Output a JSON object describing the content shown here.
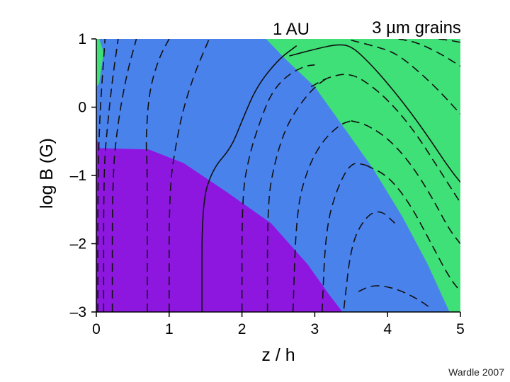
{
  "chart_data": {
    "type": "contour",
    "title_left": "1 AU",
    "title_right": "3 µm grains",
    "xlabel": "z / h",
    "ylabel": "log B (G)",
    "xlim": [
      0,
      5
    ],
    "ylim": [
      -3,
      1
    ],
    "xticks": [
      "0",
      "1",
      "2",
      "3",
      "4",
      "5"
    ],
    "yticks": [
      "1",
      "0",
      "–1",
      "–2",
      "–3"
    ],
    "colors": {
      "ohm": "#8e17e0",
      "hall": "#4a82ec",
      "ambipolar": "#3fe077",
      "contour": "#111111",
      "axis": "#000000"
    },
    "regions": {
      "ohm_boundary": [
        [
          0,
          -0.45
        ],
        [
          0.05,
          -0.6
        ],
        [
          0.72,
          -0.62
        ],
        [
          1.2,
          -0.82
        ],
        [
          1.8,
          -1.25
        ],
        [
          2.4,
          -1.7
        ],
        [
          2.9,
          -2.3
        ],
        [
          3.2,
          -2.75
        ],
        [
          3.38,
          -3.0
        ]
      ],
      "ambipolar_left_boundary": [
        [
          0.04,
          1
        ],
        [
          0.1,
          0.8
        ],
        [
          0.04,
          0.35
        ],
        [
          0,
          0.3
        ]
      ],
      "ambipolar_right_boundary": [
        [
          2.33,
          1
        ],
        [
          2.6,
          0.7
        ],
        [
          3.0,
          0.3
        ],
        [
          3.4,
          -0.3
        ],
        [
          3.8,
          -0.9
        ],
        [
          4.2,
          -1.6
        ],
        [
          4.55,
          -2.3
        ],
        [
          4.85,
          -3.0
        ]
      ]
    },
    "contours": [
      {
        "style": "dashed",
        "points": [
          [
            0.02,
            -3
          ],
          [
            0.02,
            -1.0
          ],
          [
            0.05,
            -0.1
          ],
          [
            0.08,
            0.4
          ],
          [
            0.12,
            1
          ]
        ]
      },
      {
        "style": "dashed",
        "points": [
          [
            0.1,
            -3
          ],
          [
            0.1,
            -0.9
          ],
          [
            0.16,
            -0.2
          ],
          [
            0.22,
            0.4
          ],
          [
            0.3,
            1
          ]
        ]
      },
      {
        "style": "dashed",
        "points": [
          [
            0.22,
            -3
          ],
          [
            0.22,
            -1.0
          ],
          [
            0.3,
            -0.2
          ],
          [
            0.42,
            0.5
          ],
          [
            0.55,
            1
          ]
        ]
      },
      {
        "style": "dashed",
        "points": [
          [
            0.7,
            -3
          ],
          [
            0.7,
            -0.8
          ],
          [
            0.68,
            -0.5
          ],
          [
            0.72,
            0.2
          ],
          [
            0.85,
            0.7
          ],
          [
            1.0,
            1
          ]
        ]
      },
      {
        "style": "dashed",
        "points": [
          [
            1.0,
            -3
          ],
          [
            1.0,
            -1.2
          ],
          [
            1.1,
            -0.5
          ],
          [
            1.2,
            0.0
          ],
          [
            1.35,
            0.5
          ],
          [
            1.55,
            1
          ]
        ]
      },
      {
        "style": "solid",
        "points": [
          [
            1.45,
            -3
          ],
          [
            1.45,
            -1.4
          ],
          [
            1.6,
            -0.9
          ],
          [
            1.85,
            -0.6
          ],
          [
            2.0,
            -0.2
          ],
          [
            2.2,
            0.3
          ],
          [
            2.5,
            0.7
          ],
          [
            2.75,
            0.9
          ]
        ]
      },
      {
        "style": "dashed",
        "points": [
          [
            2.0,
            -3
          ],
          [
            2.0,
            -1.3
          ],
          [
            2.1,
            -0.7
          ],
          [
            2.25,
            -0.2
          ],
          [
            2.4,
            0.2
          ],
          [
            2.6,
            0.45
          ],
          [
            2.85,
            0.6
          ],
          [
            3.0,
            0.62
          ]
        ]
      },
      {
        "style": "dashed",
        "points": [
          [
            2.35,
            -3
          ],
          [
            2.35,
            -1.4
          ],
          [
            2.45,
            -0.8
          ],
          [
            2.6,
            -0.3
          ],
          [
            2.8,
            0.05
          ],
          [
            3.0,
            0.3
          ],
          [
            3.2,
            0.45
          ]
        ]
      },
      {
        "style": "dashed",
        "points": [
          [
            2.7,
            -3
          ],
          [
            2.75,
            -1.5
          ],
          [
            2.9,
            -0.9
          ],
          [
            3.1,
            -0.5
          ],
          [
            3.35,
            -0.25
          ],
          [
            3.5,
            -0.2
          ]
        ]
      },
      {
        "style": "dashed",
        "points": [
          [
            3.1,
            -3
          ],
          [
            3.15,
            -1.8
          ],
          [
            3.3,
            -1.2
          ],
          [
            3.5,
            -0.8
          ],
          [
            3.7,
            -0.85
          ]
        ]
      },
      {
        "style": "dashed",
        "points": [
          [
            3.4,
            -2.95
          ],
          [
            3.5,
            -2.0
          ],
          [
            3.7,
            -1.6
          ],
          [
            3.9,
            -1.5
          ],
          [
            4.1,
            -1.7
          ]
        ]
      },
      {
        "style": "dashed",
        "points": [
          [
            3.6,
            -2.7
          ],
          [
            3.8,
            -2.6
          ],
          [
            4.1,
            -2.65
          ],
          [
            4.4,
            -2.8
          ],
          [
            4.6,
            -2.95
          ]
        ]
      },
      {
        "style": "solid",
        "points": [
          [
            2.65,
            0.75
          ],
          [
            3.0,
            0.85
          ],
          [
            3.3,
            0.92
          ],
          [
            3.5,
            0.9
          ],
          [
            3.75,
            0.65
          ],
          [
            4.0,
            0.35
          ],
          [
            4.3,
            -0.05
          ],
          [
            4.6,
            -0.5
          ],
          [
            4.85,
            -0.9
          ],
          [
            5.0,
            -1.1
          ]
        ]
      },
      {
        "style": "dashed",
        "points": [
          [
            2.95,
            0.3
          ],
          [
            3.2,
            0.45
          ],
          [
            3.5,
            0.5
          ],
          [
            3.8,
            0.3
          ],
          [
            4.1,
            0.0
          ],
          [
            4.4,
            -0.4
          ],
          [
            4.7,
            -0.9
          ],
          [
            5.0,
            -1.4
          ]
        ]
      },
      {
        "style": "dashed",
        "points": [
          [
            3.5,
            0.98
          ],
          [
            3.8,
            0.9
          ],
          [
            4.1,
            0.8
          ],
          [
            4.4,
            0.55
          ],
          [
            4.7,
            0.25
          ],
          [
            5.0,
            -0.1
          ]
        ]
      },
      {
        "style": "dashed",
        "points": [
          [
            4.15,
            1
          ],
          [
            4.4,
            0.95
          ],
          [
            4.7,
            0.8
          ],
          [
            5.0,
            0.6
          ]
        ]
      },
      {
        "style": "dashed",
        "points": [
          [
            4.7,
            1
          ],
          [
            4.85,
            0.98
          ],
          [
            5.0,
            0.95
          ]
        ]
      },
      {
        "style": "dashed",
        "points": [
          [
            3.5,
            -0.2
          ],
          [
            3.7,
            -0.25
          ],
          [
            4.0,
            -0.45
          ],
          [
            4.3,
            -0.8
          ],
          [
            4.6,
            -1.3
          ],
          [
            4.85,
            -1.8
          ],
          [
            5.0,
            -2.0
          ]
        ]
      },
      {
        "style": "dashed",
        "points": [
          [
            3.7,
            -0.85
          ],
          [
            4.0,
            -1.0
          ],
          [
            4.3,
            -1.4
          ],
          [
            4.6,
            -2.0
          ],
          [
            4.85,
            -2.5
          ],
          [
            5.0,
            -2.7
          ]
        ]
      }
    ],
    "credit": "Wardle 2007"
  }
}
